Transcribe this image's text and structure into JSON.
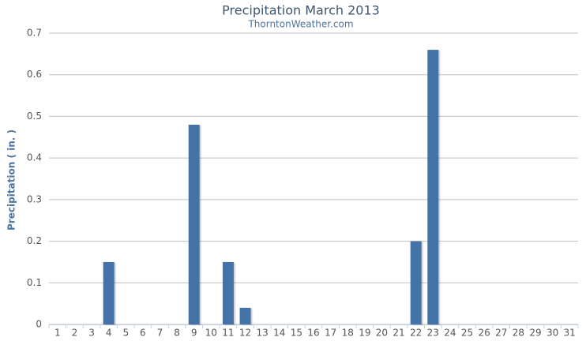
{
  "chart_data": {
    "type": "bar",
    "title": "Precipitation March 2013",
    "subtitle": "ThorntonWeather.com",
    "y_label": "Precipitation ( in. )",
    "categories": [
      "1",
      "2",
      "3",
      "4",
      "5",
      "6",
      "7",
      "8",
      "9",
      "10",
      "11",
      "12",
      "13",
      "14",
      "15",
      "16",
      "17",
      "18",
      "19",
      "20",
      "21",
      "22",
      "23",
      "24",
      "25",
      "26",
      "27",
      "28",
      "29",
      "30",
      "31"
    ],
    "values": [
      0,
      0,
      0,
      0.15,
      0,
      0,
      0,
      0,
      0.48,
      0,
      0.15,
      0.04,
      0,
      0,
      0,
      0,
      0,
      0,
      0,
      0,
      0,
      0.2,
      0.66,
      0,
      0,
      0,
      0,
      0,
      0,
      0,
      0
    ],
    "color": "#4572a7",
    "ylim": [
      0,
      0.7
    ],
    "yticks": [
      0,
      0.1,
      0.2,
      0.3,
      0.4,
      0.5,
      0.6,
      0.7
    ],
    "grid": true
  }
}
